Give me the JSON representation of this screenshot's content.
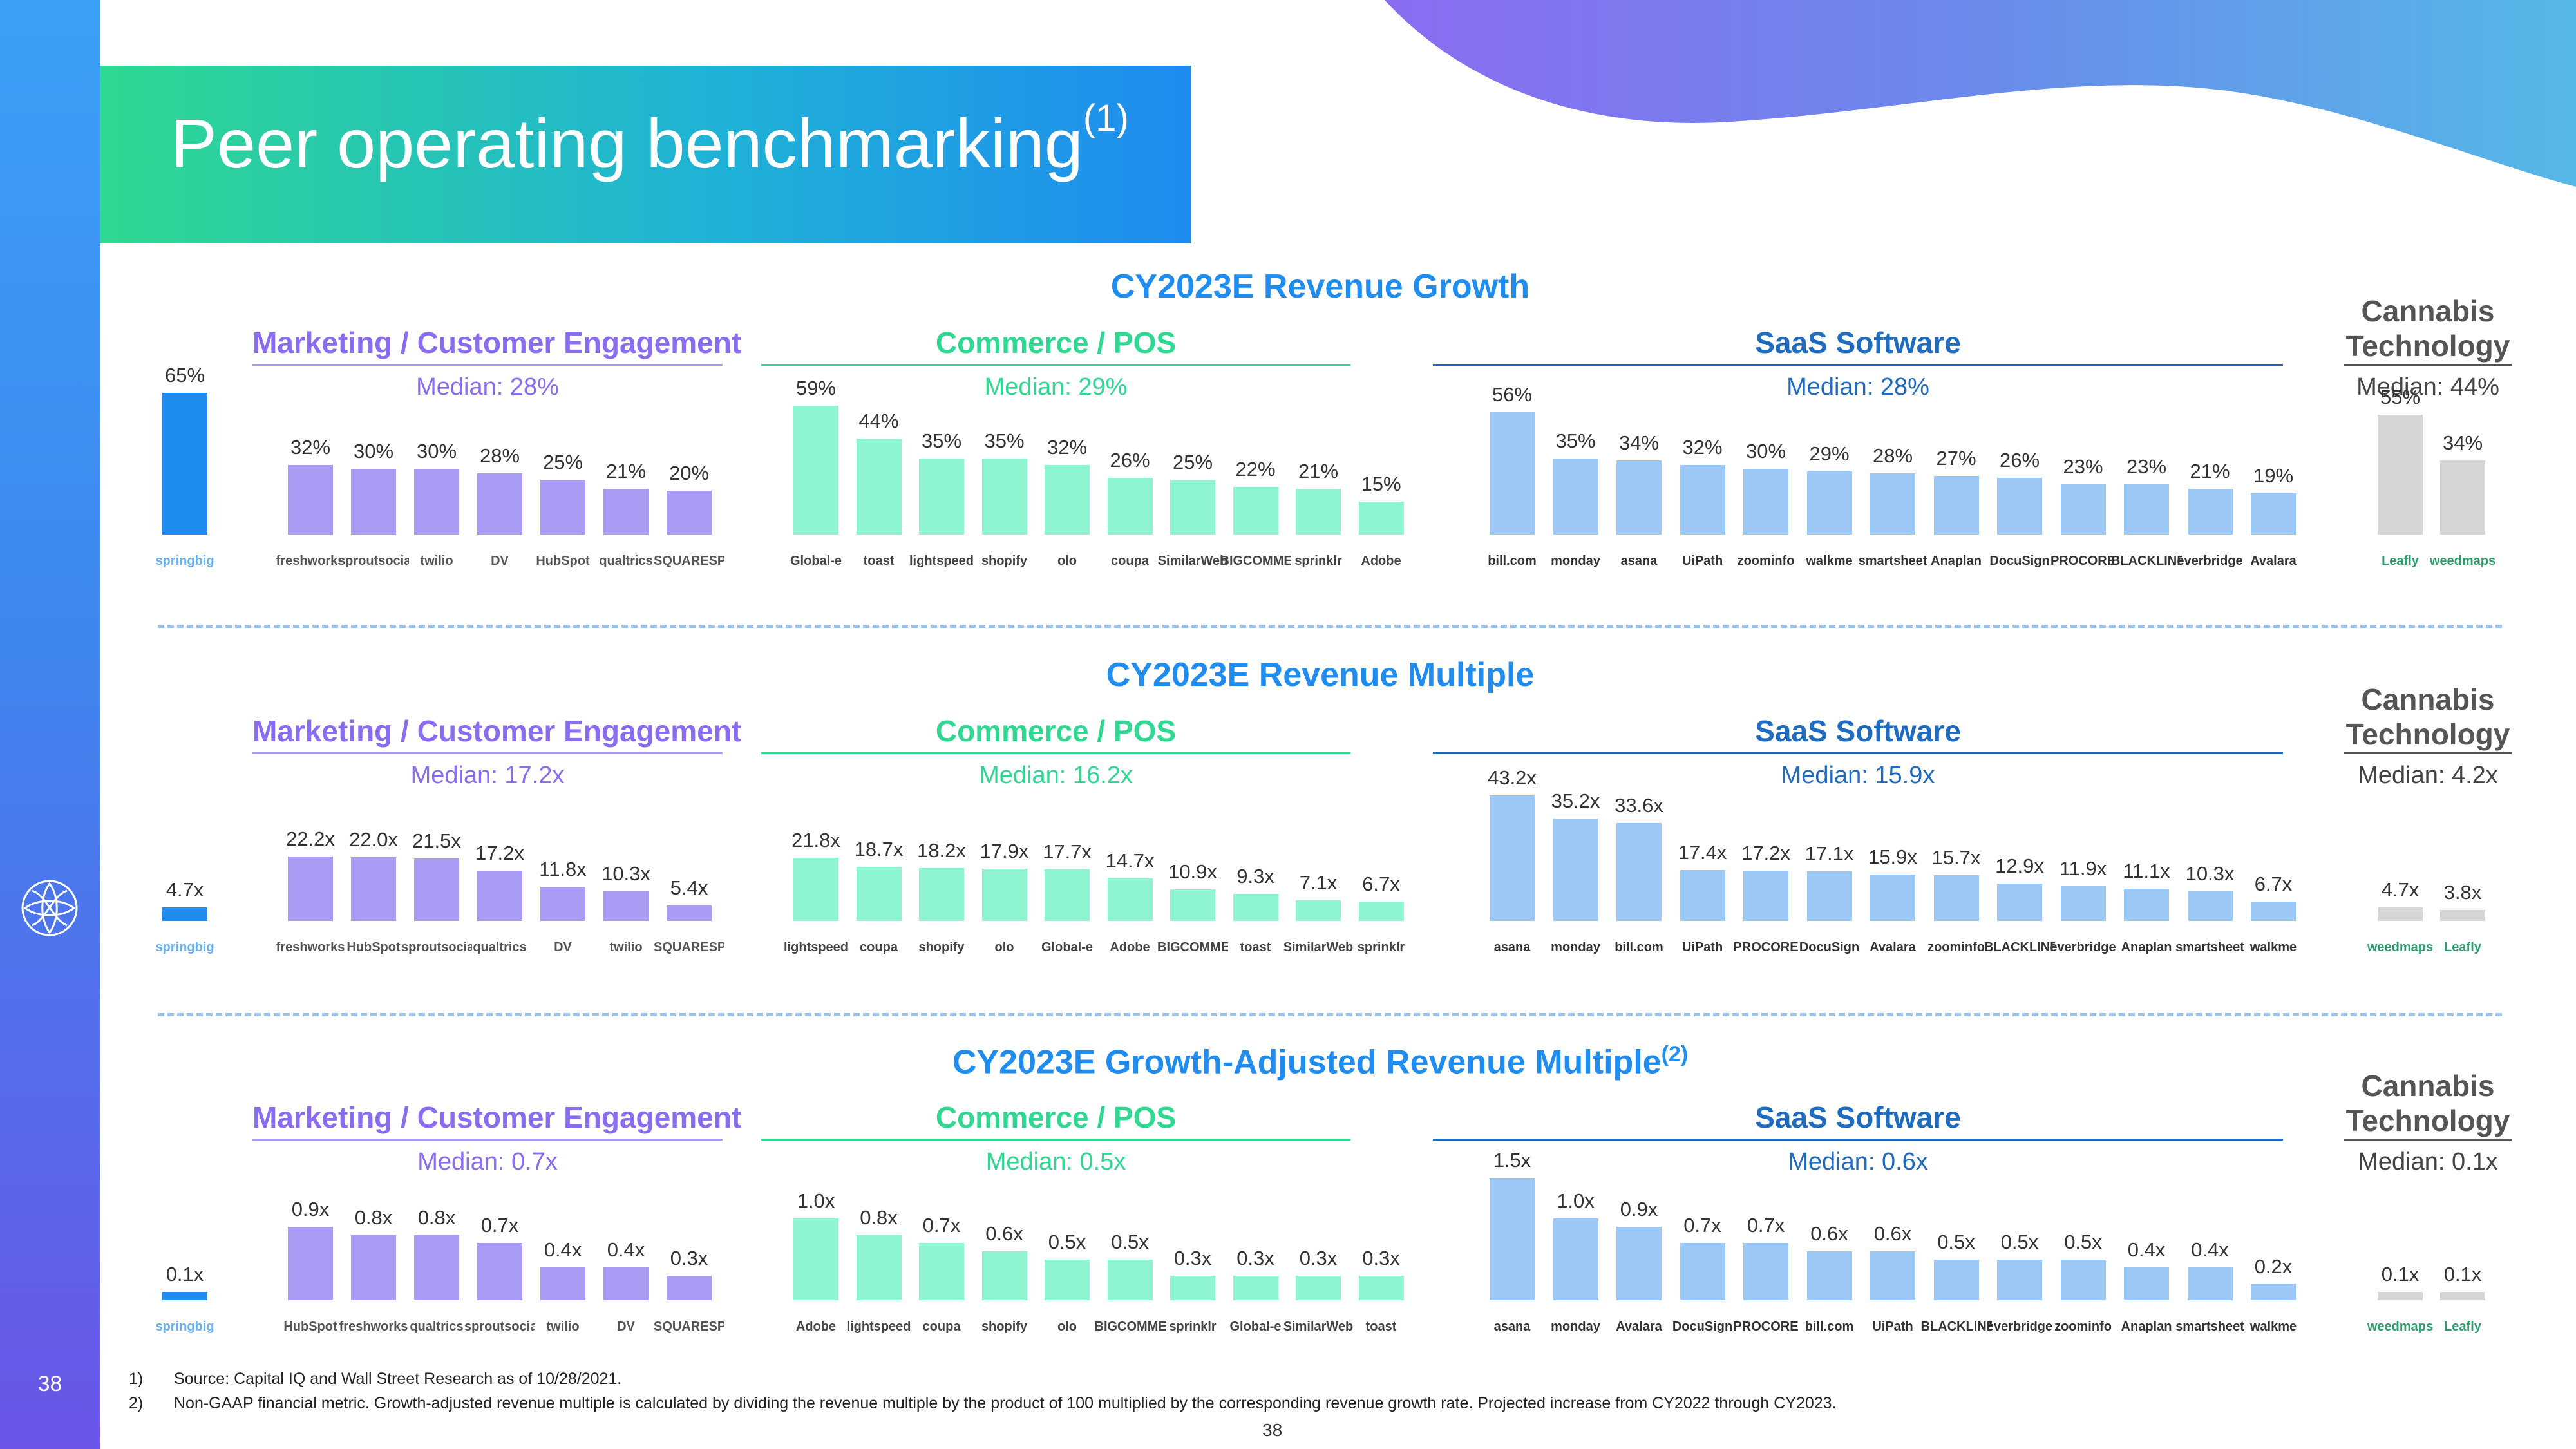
{
  "title": "Peer operating benchmarking",
  "title_sup": "(1)",
  "page_number": "38",
  "brand": "springbig",
  "colors": {
    "springbig": "#1f8cf0",
    "marketing": "#a89cf5",
    "commerce": "#8ef5d0",
    "saas": "#9cc8f5",
    "cannabis": "#d6d6d6",
    "marketing_text": "#8a6cf0",
    "commerce_text": "#2fd890",
    "saas_text": "#1f6bbf",
    "median_marketing": "#8a6cf0",
    "median_commerce": "#2fd890",
    "median_saas": "#1f6bbf"
  },
  "category_names": {
    "marketing": "Marketing / Customer Engagement",
    "commerce": "Commerce / POS",
    "saas": "SaaS Software",
    "cannabis_line1": "Cannabis",
    "cannabis_line2": "Technology"
  },
  "footnotes": [
    {
      "num": "1)",
      "text": "Source: Capital IQ and Wall Street Research as of 10/28/2021."
    },
    {
      "num": "2)",
      "text": "Non-GAAP financial metric. Growth-adjusted revenue multiple is calculated by dividing the revenue multiple by the product of 100 multiplied by the corresponding revenue growth rate. Projected increase from CY2022 through CY2023."
    }
  ],
  "chart_data": [
    {
      "type": "bar",
      "title": "CY2023E Revenue Growth",
      "title_sup": "",
      "unit_format": "percent",
      "medians": {
        "marketing": "Median: 28%",
        "commerce": "Median: 29%",
        "saas": "Median: 28%",
        "cannabis": "Median: 44%"
      },
      "groups": {
        "springbig": [
          {
            "label": "springbig",
            "value": 65,
            "text": "65%"
          }
        ],
        "marketing": [
          {
            "label": "freshworks",
            "value": 32,
            "text": "32%"
          },
          {
            "label": "sproutsocial",
            "value": 30,
            "text": "30%"
          },
          {
            "label": "twilio",
            "value": 30,
            "text": "30%"
          },
          {
            "label": "DV",
            "value": 28,
            "text": "28%"
          },
          {
            "label": "HubSpot",
            "value": 25,
            "text": "25%"
          },
          {
            "label": "qualtrics",
            "value": 21,
            "text": "21%"
          },
          {
            "label": "SQUARESPACE",
            "value": 20,
            "text": "20%"
          }
        ],
        "commerce": [
          {
            "label": "Global-e",
            "value": 59,
            "text": "59%"
          },
          {
            "label": "toast",
            "value": 44,
            "text": "44%"
          },
          {
            "label": "lightspeed",
            "value": 35,
            "text": "35%"
          },
          {
            "label": "shopify",
            "value": 35,
            "text": "35%"
          },
          {
            "label": "olo",
            "value": 32,
            "text": "32%"
          },
          {
            "label": "coupa",
            "value": 26,
            "text": "26%"
          },
          {
            "label": "SimilarWeb",
            "value": 25,
            "text": "25%"
          },
          {
            "label": "BIGCOMMERCE",
            "value": 22,
            "text": "22%"
          },
          {
            "label": "sprinklr",
            "value": 21,
            "text": "21%"
          },
          {
            "label": "Adobe",
            "value": 15,
            "text": "15%"
          }
        ],
        "saas": [
          {
            "label": "bill.com",
            "value": 56,
            "text": "56%"
          },
          {
            "label": "monday",
            "value": 35,
            "text": "35%"
          },
          {
            "label": "asana",
            "value": 34,
            "text": "34%"
          },
          {
            "label": "UiPath",
            "value": 32,
            "text": "32%"
          },
          {
            "label": "zoominfo",
            "value": 30,
            "text": "30%"
          },
          {
            "label": "walkme",
            "value": 29,
            "text": "29%"
          },
          {
            "label": "smartsheet",
            "value": 28,
            "text": "28%"
          },
          {
            "label": "Anaplan",
            "value": 27,
            "text": "27%"
          },
          {
            "label": "DocuSign",
            "value": 26,
            "text": "26%"
          },
          {
            "label": "PROCORE",
            "value": 23,
            "text": "23%"
          },
          {
            "label": "BLACKLINE",
            "value": 23,
            "text": "23%"
          },
          {
            "label": "everbridge",
            "value": 21,
            "text": "21%"
          },
          {
            "label": "Avalara",
            "value": 19,
            "text": "19%"
          }
        ],
        "cannabis": [
          {
            "label": "Leafly",
            "value": 55,
            "text": "55%"
          },
          {
            "label": "weedmaps",
            "value": 34,
            "text": "34%"
          }
        ]
      }
    },
    {
      "type": "bar",
      "title": "CY2023E Revenue Multiple",
      "title_sup": "",
      "unit_format": "multiple",
      "medians": {
        "marketing": "Median: 17.2x",
        "commerce": "Median: 16.2x",
        "saas": "Median: 15.9x",
        "cannabis": "Median: 4.2x"
      },
      "groups": {
        "springbig": [
          {
            "label": "springbig",
            "value": 4.7,
            "text": "4.7x"
          }
        ],
        "marketing": [
          {
            "label": "freshworks",
            "value": 22.2,
            "text": "22.2x"
          },
          {
            "label": "HubSpot",
            "value": 22.0,
            "text": "22.0x"
          },
          {
            "label": "sproutsocial",
            "value": 21.5,
            "text": "21.5x"
          },
          {
            "label": "qualtrics",
            "value": 17.2,
            "text": "17.2x"
          },
          {
            "label": "DV",
            "value": 11.8,
            "text": "11.8x"
          },
          {
            "label": "twilio",
            "value": 10.3,
            "text": "10.3x"
          },
          {
            "label": "SQUARESPACE",
            "value": 5.4,
            "text": "5.4x"
          }
        ],
        "commerce": [
          {
            "label": "lightspeed",
            "value": 21.8,
            "text": "21.8x"
          },
          {
            "label": "coupa",
            "value": 18.7,
            "text": "18.7x"
          },
          {
            "label": "shopify",
            "value": 18.2,
            "text": "18.2x"
          },
          {
            "label": "olo",
            "value": 17.9,
            "text": "17.9x"
          },
          {
            "label": "Global-e",
            "value": 17.7,
            "text": "17.7x"
          },
          {
            "label": "Adobe",
            "value": 14.7,
            "text": "14.7x"
          },
          {
            "label": "BIGCOMMERCE",
            "value": 10.9,
            "text": "10.9x"
          },
          {
            "label": "toast",
            "value": 9.3,
            "text": "9.3x"
          },
          {
            "label": "SimilarWeb",
            "value": 7.1,
            "text": "7.1x"
          },
          {
            "label": "sprinklr",
            "value": 6.7,
            "text": "6.7x"
          }
        ],
        "saas": [
          {
            "label": "asana",
            "value": 43.2,
            "text": "43.2x"
          },
          {
            "label": "monday",
            "value": 35.2,
            "text": "35.2x"
          },
          {
            "label": "bill.com",
            "value": 33.6,
            "text": "33.6x"
          },
          {
            "label": "UiPath",
            "value": 17.4,
            "text": "17.4x"
          },
          {
            "label": "PROCORE",
            "value": 17.2,
            "text": "17.2x"
          },
          {
            "label": "DocuSign",
            "value": 17.1,
            "text": "17.1x"
          },
          {
            "label": "Avalara",
            "value": 15.9,
            "text": "15.9x"
          },
          {
            "label": "zoominfo",
            "value": 15.7,
            "text": "15.7x"
          },
          {
            "label": "BLACKLINE",
            "value": 12.9,
            "text": "12.9x"
          },
          {
            "label": "everbridge",
            "value": 11.9,
            "text": "11.9x"
          },
          {
            "label": "Anaplan",
            "value": 11.1,
            "text": "11.1x"
          },
          {
            "label": "smartsheet",
            "value": 10.3,
            "text": "10.3x"
          },
          {
            "label": "walkme",
            "value": 6.7,
            "text": "6.7x"
          }
        ],
        "cannabis": [
          {
            "label": "weedmaps",
            "value": 4.7,
            "text": "4.7x"
          },
          {
            "label": "Leafly",
            "value": 3.8,
            "text": "3.8x"
          }
        ]
      }
    },
    {
      "type": "bar",
      "title": "CY2023E Growth-Adjusted Revenue Multiple",
      "title_sup": "(2)",
      "unit_format": "multiple",
      "medians": {
        "marketing": "Median: 0.7x",
        "commerce": "Median: 0.5x",
        "saas": "Median: 0.6x",
        "cannabis": "Median: 0.1x"
      },
      "groups": {
        "springbig": [
          {
            "label": "springbig",
            "value": 0.1,
            "text": "0.1x"
          }
        ],
        "marketing": [
          {
            "label": "HubSpot",
            "value": 0.9,
            "text": "0.9x"
          },
          {
            "label": "freshworks",
            "value": 0.8,
            "text": "0.8x"
          },
          {
            "label": "qualtrics",
            "value": 0.8,
            "text": "0.8x"
          },
          {
            "label": "sproutsocial",
            "value": 0.7,
            "text": "0.7x"
          },
          {
            "label": "twilio",
            "value": 0.4,
            "text": "0.4x"
          },
          {
            "label": "DV",
            "value": 0.4,
            "text": "0.4x"
          },
          {
            "label": "SQUARESPACE",
            "value": 0.3,
            "text": "0.3x"
          }
        ],
        "commerce": [
          {
            "label": "Adobe",
            "value": 1.0,
            "text": "1.0x"
          },
          {
            "label": "lightspeed",
            "value": 0.8,
            "text": "0.8x"
          },
          {
            "label": "coupa",
            "value": 0.7,
            "text": "0.7x"
          },
          {
            "label": "shopify",
            "value": 0.6,
            "text": "0.6x"
          },
          {
            "label": "olo",
            "value": 0.5,
            "text": "0.5x"
          },
          {
            "label": "BIGCOMMERCE",
            "value": 0.5,
            "text": "0.5x"
          },
          {
            "label": "sprinklr",
            "value": 0.3,
            "text": "0.3x"
          },
          {
            "label": "Global-e",
            "value": 0.3,
            "text": "0.3x"
          },
          {
            "label": "SimilarWeb",
            "value": 0.3,
            "text": "0.3x"
          },
          {
            "label": "toast",
            "value": 0.3,
            "text": "0.3x"
          }
        ],
        "saas": [
          {
            "label": "asana",
            "value": 1.5,
            "text": "1.5x"
          },
          {
            "label": "monday",
            "value": 1.0,
            "text": "1.0x"
          },
          {
            "label": "Avalara",
            "value": 0.9,
            "text": "0.9x"
          },
          {
            "label": "DocuSign",
            "value": 0.7,
            "text": "0.7x"
          },
          {
            "label": "PROCORE",
            "value": 0.7,
            "text": "0.7x"
          },
          {
            "label": "bill.com",
            "value": 0.6,
            "text": "0.6x"
          },
          {
            "label": "UiPath",
            "value": 0.6,
            "text": "0.6x"
          },
          {
            "label": "BLACKLINE",
            "value": 0.5,
            "text": "0.5x"
          },
          {
            "label": "everbridge",
            "value": 0.5,
            "text": "0.5x"
          },
          {
            "label": "zoominfo",
            "value": 0.5,
            "text": "0.5x"
          },
          {
            "label": "Anaplan",
            "value": 0.4,
            "text": "0.4x"
          },
          {
            "label": "smartsheet",
            "value": 0.4,
            "text": "0.4x"
          },
          {
            "label": "walkme",
            "value": 0.2,
            "text": "0.2x"
          }
        ],
        "cannabis": [
          {
            "label": "weedmaps",
            "value": 0.1,
            "text": "0.1x"
          },
          {
            "label": "Leafly",
            "value": 0.1,
            "text": "0.1x"
          }
        ]
      }
    }
  ]
}
